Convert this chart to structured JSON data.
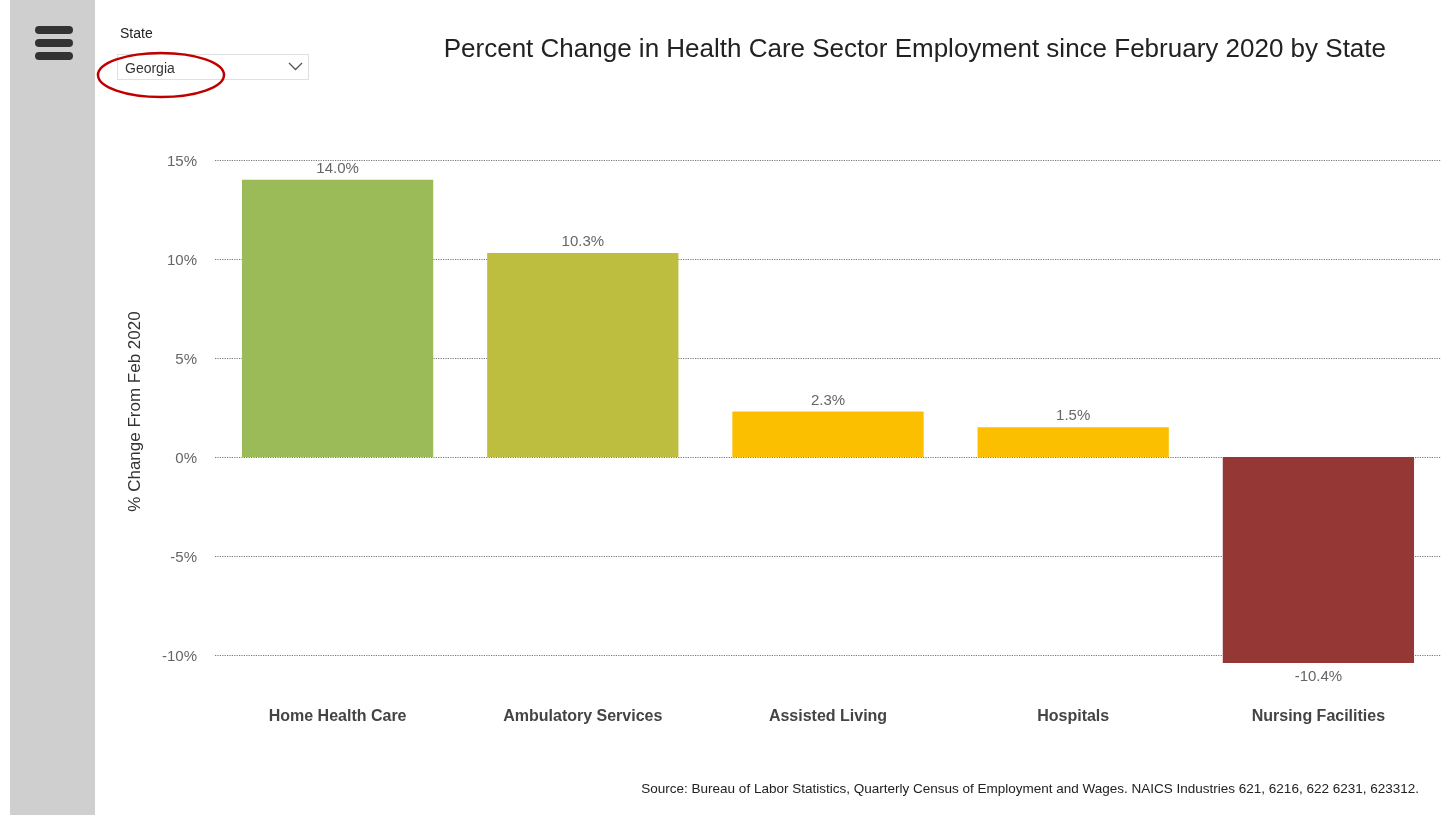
{
  "chart_data": {
    "type": "bar",
    "title": "Percent Change in Health Care Sector Employment since February 2020 by State",
    "ylabel": "% Change From Feb 2020",
    "categories": [
      "Home Health Care",
      "Ambulatory Services",
      "Assisted Living",
      "Hospitals",
      "Nursing Facilities"
    ],
    "values": [
      14.0,
      10.3,
      2.3,
      1.5,
      -10.4
    ],
    "colors": [
      "#9bbb59",
      "#bdbd3f",
      "#fbbf00",
      "#fbbf00",
      "#953735"
    ],
    "value_labels": [
      "14.0%",
      "10.3%",
      "2.3%",
      "1.5%",
      "-10.4%"
    ],
    "yticks": [
      {
        "value": -10,
        "label": "-10%"
      },
      {
        "value": -5,
        "label": "-5%"
      },
      {
        "value": 0,
        "label": "0%"
      },
      {
        "value": 5,
        "label": "5%"
      },
      {
        "value": 10,
        "label": "10%"
      },
      {
        "value": 15,
        "label": "15%"
      }
    ],
    "ylim": [
      -10.4,
      15
    ],
    "grid": "y",
    "annotations": [
      "State",
      "Georgia",
      "Source: Bureau of Labor Statistics, Quarterly Census of Employment and Wages. NAICS Industries 621, 6216, 622 6231, 623312."
    ]
  }
}
